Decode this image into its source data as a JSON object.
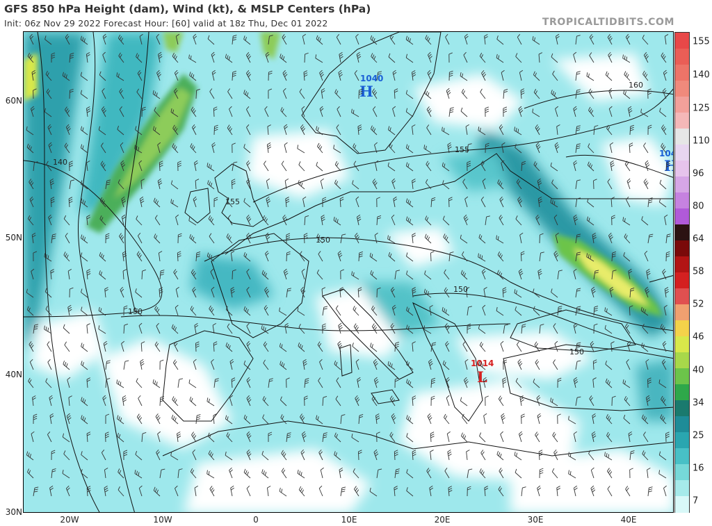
{
  "header": {
    "title": "GFS 850 hPa Height (dam), Wind (kt), & MSLP Centers (hPa)",
    "subtitle": "Init: 06z Nov 29 2022   Forecast Hour: [60]   valid at 18z Thu, Dec 01 2022",
    "brand": "TROPICALTIDBITS.COM"
  },
  "lat_labels": [
    "60N",
    "50N",
    "40N",
    "30N"
  ],
  "lon_labels": [
    "20W",
    "10W",
    "0",
    "10E",
    "20E",
    "30E",
    "40E"
  ],
  "contour_labels": [
    "140",
    "155",
    "160",
    "155",
    "150",
    "150",
    "150",
    "150"
  ],
  "pressure_centers": [
    {
      "type": "H",
      "value": "1040",
      "color": "#1a5fd6"
    },
    {
      "type": "H",
      "value": "104",
      "color": "#1a5fd6"
    },
    {
      "type": "L",
      "value": "1014",
      "color": "#d62020"
    }
  ],
  "colorbar": {
    "labels": [
      "155",
      "140",
      "125",
      "110",
      "96",
      "80",
      "64",
      "58",
      "52",
      "46",
      "40",
      "34",
      "25",
      "16",
      "7"
    ],
    "colors": [
      "#e84848",
      "#ea5e56",
      "#ed7468",
      "#f08a7c",
      "#f2a09a",
      "#f4b8b8",
      "#e6e6e6",
      "#e8d6f0",
      "#e6c4ec",
      "#d6a6e6",
      "#c682e0",
      "#b05ad8",
      "#2b1212",
      "#7a0a0a",
      "#b21414",
      "#d42020",
      "#e05050",
      "#f0a070",
      "#f4d24a",
      "#d8e84a",
      "#a8d84a",
      "#6cc44a",
      "#2ea84a",
      "#1a7a6e",
      "#1e8c98",
      "#2aa6b0",
      "#48c0c6",
      "#76d8d8",
      "#a6eaea",
      "#d8f8f8"
    ]
  }
}
